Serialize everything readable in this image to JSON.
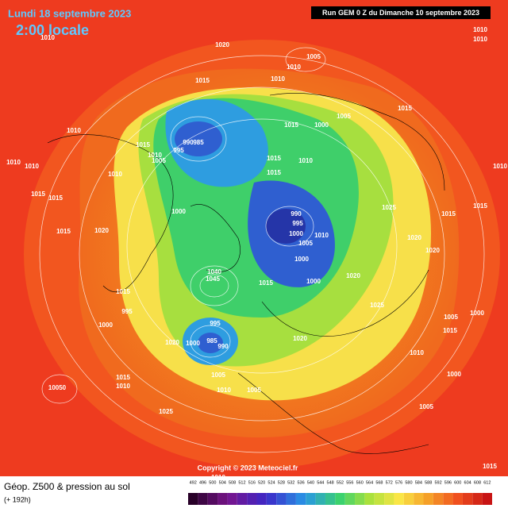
{
  "header": {
    "date": "Lundi 18 septembre 2023",
    "time": "2:00 locale",
    "run": "Run GEM 0 Z du Dimanche 10 septembre 2023"
  },
  "footer": {
    "title": "Géop. Z500 & pression au sol",
    "lead": "(+ 192h)",
    "copyright": "Copyright © 2023 Meteociel.fr"
  },
  "legend": {
    "ticks": [
      492,
      496,
      500,
      504,
      508,
      512,
      516,
      520,
      524,
      528,
      532,
      536,
      540,
      544,
      548,
      552,
      556,
      560,
      564,
      568,
      572,
      576,
      580,
      584,
      588,
      592,
      596,
      600,
      604,
      608,
      612
    ]
  },
  "pressure_labels": [
    "1010",
    "1020",
    "1005",
    "1010",
    "1015",
    "1010",
    "1010",
    "1010",
    "1015",
    "1000",
    "1015",
    "1005",
    "985",
    "990",
    "995",
    "1010",
    "1015",
    "1010",
    "1005",
    "1010",
    "1010",
    "1010",
    "1015",
    "1010",
    "1015",
    "1010",
    "1015",
    "1015",
    "990",
    "995",
    "1000",
    "1005",
    "1010",
    "1025",
    "1015",
    "1015",
    "1020",
    "1000",
    "1015",
    "1020",
    "1020",
    "1000",
    "1040",
    "1045",
    "1015",
    "1000",
    "1020",
    "1025",
    "1015",
    "995",
    "1000",
    "995",
    "985",
    "1000",
    "990",
    "1020",
    "1020",
    "1005",
    "1010",
    "1005",
    "1015",
    "1010",
    "1025",
    "1005",
    "1000",
    "1005",
    "1015",
    "1010",
    "1000",
    "1010",
    "1015",
    "10050"
  ]
}
